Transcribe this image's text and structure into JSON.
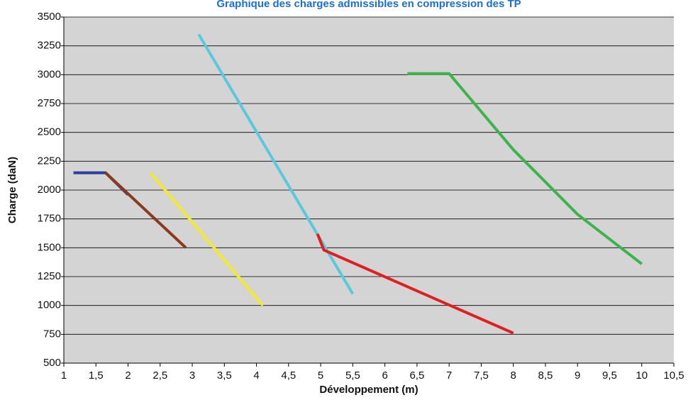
{
  "chart_data": {
    "type": "line",
    "title": "Graphique des charges admissibles en compression des TP",
    "x_label": "Développement (m)",
    "y_label": "Charge (daN)",
    "xlim": [
      1,
      10.5
    ],
    "ylim": [
      500,
      3500
    ],
    "xticks": [
      1,
      {
        "value": 1.5,
        "label": "1,5"
      },
      2,
      {
        "value": 2.5,
        "label": "2,5"
      },
      3,
      {
        "value": 3.5,
        "label": "3,5"
      },
      4,
      {
        "value": 4.5,
        "label": "4,5"
      },
      5,
      {
        "value": 5.5,
        "label": "5,5"
      },
      6,
      {
        "value": 6.5,
        "label": "6,5"
      },
      7,
      {
        "value": 7.5,
        "label": "7,5"
      },
      8,
      {
        "value": 8.5,
        "label": "8,5"
      },
      9,
      {
        "value": 9.5,
        "label": "9,5"
      },
      10,
      {
        "value": 10.5,
        "label": "10,5"
      }
    ],
    "yticks": [
      500,
      750,
      1000,
      1250,
      1500,
      1750,
      2000,
      2250,
      2500,
      2750,
      3000,
      3250,
      3500
    ],
    "grid": true,
    "series": [
      {
        "color": "#2e3d9a",
        "x": [
          1.15,
          1.65,
          2.0
        ],
        "values": [
          2150,
          2150,
          1960
        ]
      },
      {
        "color": "#8b3a1e",
        "x": [
          1.65,
          2.9
        ],
        "values": [
          2150,
          1500
        ]
      },
      {
        "color": "#f2e933",
        "x": [
          2.35,
          4.1
        ],
        "values": [
          2150,
          1000
        ]
      },
      {
        "color": "#5bc8dc",
        "x": [
          3.1,
          5.5
        ],
        "values": [
          3350,
          1100
        ]
      },
      {
        "color": "#e02020",
        "x": [
          4.95,
          5.05,
          8.0
        ],
        "values": [
          1620,
          1480,
          760
        ]
      },
      {
        "color": "#3cb44b",
        "x": [
          6.35,
          7.0,
          8.0,
          9.0,
          10.0
        ],
        "values": [
          3010,
          3010,
          2350,
          1790,
          1360
        ]
      }
    ]
  }
}
